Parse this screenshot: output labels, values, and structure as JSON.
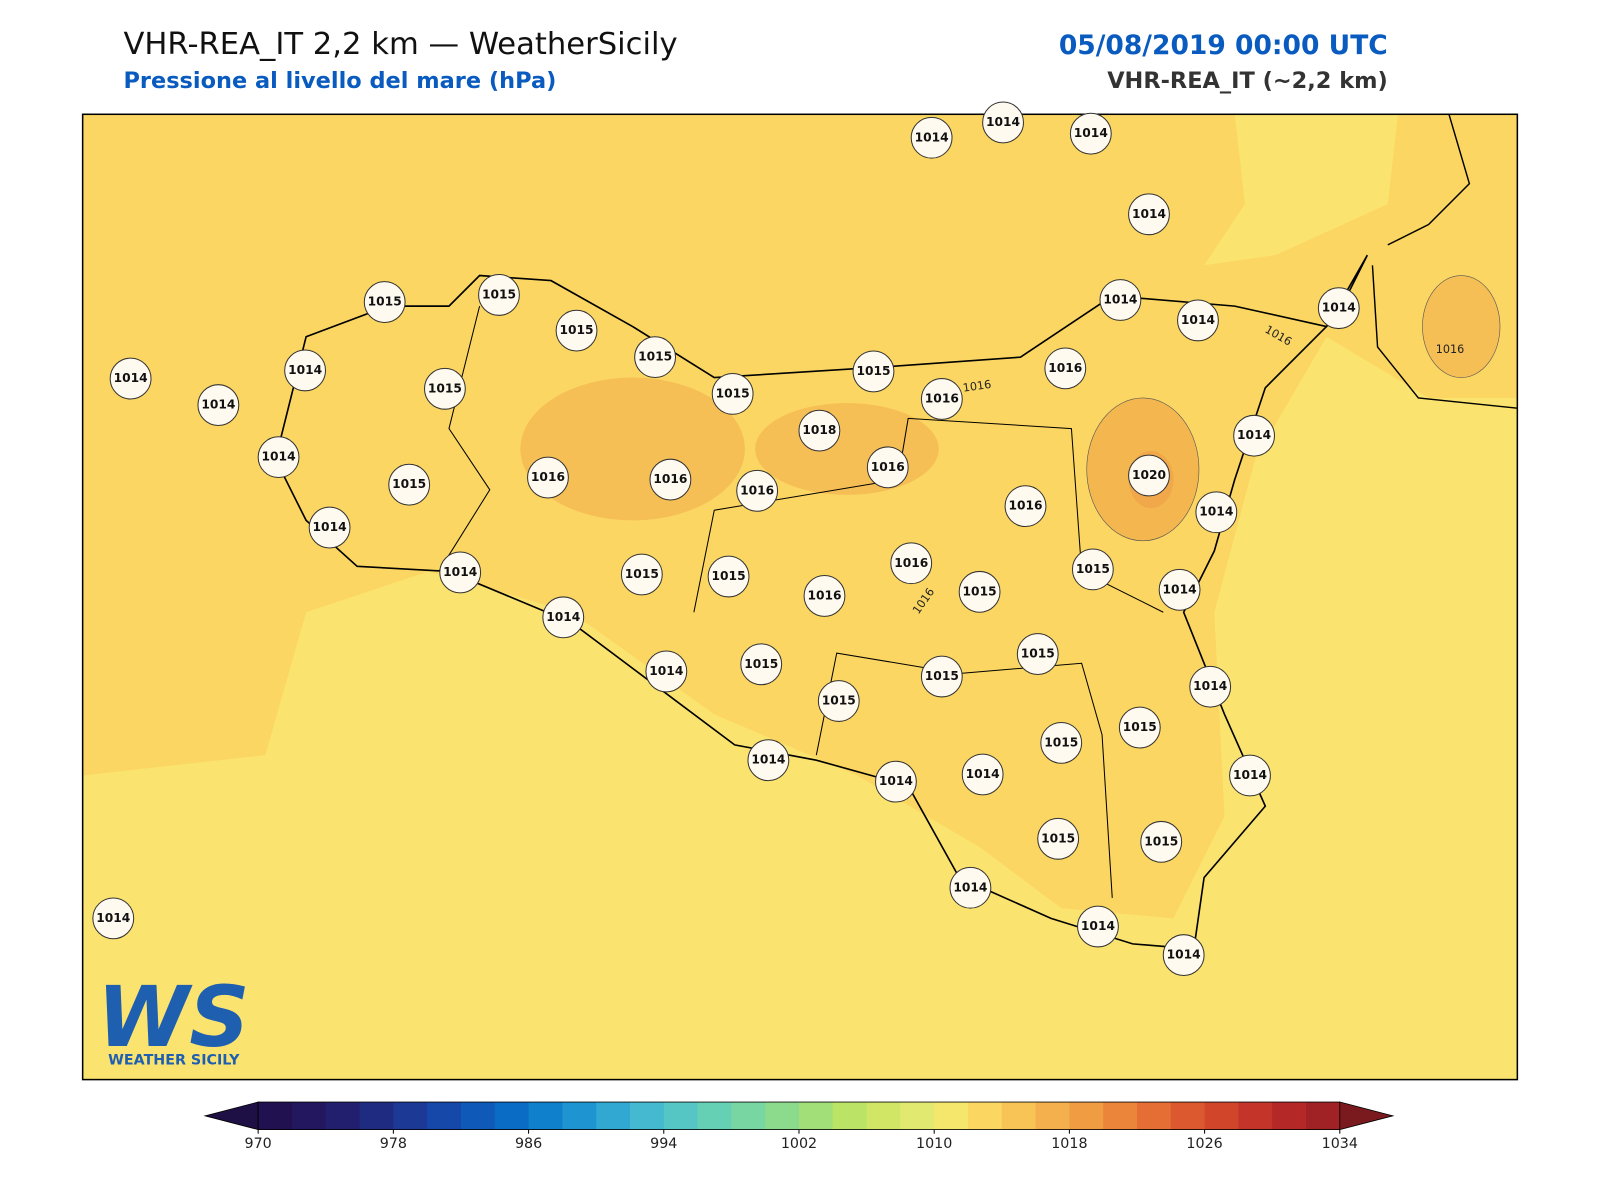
{
  "header": {
    "title": "VHR-REA_IT 2,2 km — WeatherSicily",
    "subtitle": "Pressione al livello del mare (hPa)",
    "datetime": "05/08/2019 00:00 UTC",
    "model": "VHR-REA_IT (~2,2 km)"
  },
  "map": {
    "stations": [
      1014,
      1014,
      1014,
      1014,
      1015,
      1015,
      1015,
      1015,
      1014,
      1014,
      1014,
      1014,
      1014,
      1014,
      1015,
      1015,
      1015,
      1016,
      1016,
      1014,
      1018,
      1016,
      1014,
      1016,
      1016,
      1016,
      1015,
      1020,
      1016,
      1014,
      1014,
      1014,
      1015,
      1015,
      1016,
      1016,
      1015,
      1015,
      1014,
      1014,
      1014,
      1015,
      1015,
      1015,
      1015,
      1014,
      1015,
      1015,
      1014,
      1014,
      1014,
      1014,
      1015,
      1015,
      1014,
      1014,
      1014,
      1014
    ],
    "contour_labels": [
      "1016",
      "1016",
      "1016",
      "1016"
    ]
  },
  "colorbar": {
    "ticks": [
      970,
      978,
      986,
      994,
      1002,
      1010,
      1018,
      1026,
      1034
    ]
  },
  "logo": {
    "letters": "WS",
    "text": "WEATHER SICILY"
  }
}
